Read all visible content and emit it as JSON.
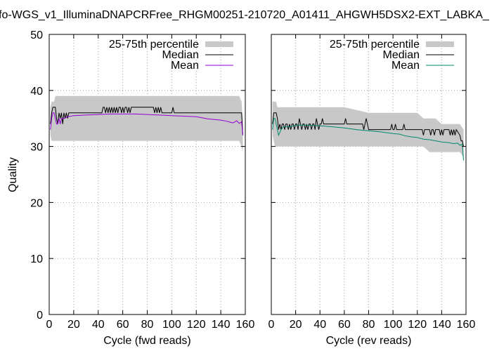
{
  "title": "fo-WGS_v1_IlluminaDNAPCRFree_RHGM00251-210720_A01411_AHGWH5DSX2-EXT_LABKA_",
  "chart_data": [
    {
      "type": "line",
      "xlabel": "Cycle (fwd reads)",
      "ylabel": "Quality",
      "xlim": [
        0,
        160
      ],
      "ylim": [
        0,
        50
      ],
      "xticks": [
        0,
        20,
        40,
        60,
        80,
        100,
        120,
        140,
        160
      ],
      "yticks": [
        0,
        10,
        20,
        30,
        40,
        50
      ],
      "grid": true,
      "legend_position": "top-right",
      "legend": [
        "25-75th percentile",
        "Median",
        "Mean"
      ],
      "colors": {
        "band": "#c8c8c8",
        "median": "#000000",
        "mean": "#9400d3"
      },
      "band_x": [
        1,
        2,
        3,
        4,
        5,
        6,
        7,
        8,
        9,
        10,
        12,
        15,
        20,
        30,
        40,
        50,
        60,
        70,
        80,
        90,
        100,
        110,
        120,
        130,
        140,
        145,
        150,
        155,
        157,
        158
      ],
      "band_low": [
        32,
        31,
        31,
        31,
        31,
        31,
        31,
        31,
        31,
        31,
        31,
        31,
        31,
        31,
        31,
        31,
        31,
        31,
        31,
        31,
        31,
        31,
        31,
        31,
        31,
        31,
        31,
        31,
        30,
        29
      ],
      "band_high": [
        37,
        38,
        38,
        38,
        39,
        39,
        39,
        39,
        39,
        39,
        39,
        39,
        39,
        39,
        39,
        39,
        39,
        39,
        39,
        39,
        39,
        39,
        39,
        39,
        39,
        39,
        39,
        39,
        38,
        34
      ],
      "median_x": [
        1,
        2,
        3,
        4,
        5,
        6,
        7,
        8,
        9,
        10,
        11,
        12,
        13,
        14,
        15,
        16,
        17,
        43,
        44,
        45,
        46,
        47,
        48,
        49,
        50,
        51,
        52,
        53,
        54,
        55,
        56,
        57,
        58,
        59,
        60,
        61,
        62,
        63,
        64,
        65,
        66,
        67,
        68,
        69,
        85,
        86,
        87,
        88,
        89,
        90,
        91,
        92,
        100,
        101,
        102,
        103,
        157,
        158
      ],
      "median_y": [
        34,
        36,
        37,
        37,
        37,
        35,
        34,
        36,
        35,
        36,
        34,
        36,
        35,
        36,
        35,
        36,
        36,
        36,
        37,
        37,
        36,
        37,
        36,
        37,
        36,
        37,
        36,
        37,
        36,
        37,
        36,
        37,
        37,
        36,
        37,
        36,
        37,
        37,
        36,
        37,
        36,
        37,
        37,
        37,
        37,
        36,
        37,
        36,
        37,
        36,
        37,
        36,
        36,
        37,
        36,
        36,
        36,
        32
      ],
      "mean_x": [
        1,
        2,
        3,
        4,
        5,
        6,
        7,
        8,
        9,
        10,
        12,
        15,
        20,
        30,
        40,
        50,
        60,
        70,
        80,
        90,
        100,
        110,
        120,
        125,
        130,
        135,
        140,
        145,
        148,
        150,
        153,
        155,
        157,
        158
      ],
      "mean_y": [
        33,
        35,
        36,
        36,
        35,
        34,
        34,
        35,
        34,
        35,
        35,
        35.3,
        35.5,
        35.6,
        35.7,
        35.8,
        35.8,
        35.8,
        35.7,
        35.6,
        35.5,
        35.4,
        35.3,
        35.1,
        34.9,
        34.8,
        34.7,
        34.5,
        34.3,
        34.2,
        34.6,
        34.1,
        34.4,
        32
      ]
    },
    {
      "type": "line",
      "xlabel": "Cycle (rev reads)",
      "ylabel": "",
      "xlim": [
        0,
        160
      ],
      "ylim": [
        0,
        50
      ],
      "xticks": [
        0,
        20,
        40,
        60,
        80,
        100,
        120,
        140,
        160
      ],
      "yticks": [
        0,
        10,
        20,
        30,
        40,
        50
      ],
      "grid": true,
      "legend_position": "top-right",
      "legend": [
        "25-75th percentile",
        "Median",
        "Mean"
      ],
      "colors": {
        "band": "#c8c8c8",
        "median": "#000000",
        "mean": "#00896b"
      },
      "band_x": [
        1,
        2,
        3,
        4,
        5,
        6,
        8,
        10,
        20,
        40,
        60,
        80,
        100,
        110,
        120,
        125,
        130,
        135,
        140,
        145,
        150,
        155,
        158
      ],
      "band_low": [
        32,
        31,
        30,
        30,
        30,
        30,
        30,
        30,
        30,
        30,
        30,
        30,
        30,
        30,
        30,
        30,
        29,
        29,
        29,
        29,
        29,
        29,
        28
      ],
      "band_high": [
        38,
        38,
        38,
        38,
        37,
        37,
        37,
        37,
        37,
        37,
        37,
        36,
        36,
        36,
        36,
        35,
        35,
        35,
        34,
        34,
        34,
        34,
        33
      ],
      "median_x": [
        1,
        2,
        3,
        4,
        5,
        6,
        7,
        8,
        9,
        10,
        11,
        12,
        13,
        14,
        15,
        16,
        17,
        18,
        19,
        20,
        21,
        22,
        23,
        24,
        25,
        26,
        27,
        28,
        29,
        30,
        31,
        32,
        33,
        34,
        35,
        36,
        37,
        38,
        39,
        40,
        41,
        42,
        43,
        44,
        60,
        61,
        62,
        63,
        75,
        76,
        77,
        78,
        79,
        80,
        98,
        99,
        100,
        101,
        102,
        103,
        104,
        108,
        109,
        110,
        111,
        124,
        125,
        126,
        127,
        130,
        131,
        132,
        133,
        134,
        135,
        138,
        139,
        140,
        141,
        142,
        143,
        146,
        147,
        148,
        149,
        150,
        151,
        152,
        155,
        156,
        157,
        158
      ],
      "median_y": [
        34,
        36,
        36,
        36,
        35,
        33,
        34,
        33,
        34,
        34,
        33,
        34,
        34,
        33,
        34,
        33,
        34,
        34,
        33,
        34,
        34,
        33,
        35,
        34,
        33,
        34,
        34,
        33,
        34,
        33,
        34,
        34,
        33,
        34,
        34,
        33,
        35,
        34,
        33,
        34,
        34,
        35,
        34,
        34,
        34,
        35,
        34,
        34,
        34,
        33,
        34,
        35,
        34,
        33,
        33,
        34,
        33,
        33,
        34,
        33,
        33,
        33,
        34,
        33,
        33,
        33,
        32,
        33,
        33,
        33,
        32,
        33,
        33,
        32,
        33,
        33,
        32,
        33,
        32,
        33,
        33,
        33,
        32,
        33,
        32,
        33,
        32,
        33,
        32,
        31,
        31,
        30
      ],
      "mean_x": [
        1,
        2,
        3,
        4,
        5,
        6,
        8,
        10,
        15,
        20,
        30,
        40,
        50,
        60,
        70,
        80,
        90,
        100,
        105,
        110,
        115,
        120,
        125,
        130,
        135,
        140,
        145,
        150,
        153,
        155,
        157,
        158
      ],
      "mean_y": [
        33,
        35,
        35,
        34,
        33,
        32,
        33,
        33.5,
        33.5,
        33.8,
        33.8,
        33.7,
        33.5,
        33.3,
        33,
        32.8,
        32.6,
        32.3,
        32.2,
        31.9,
        31.7,
        31.6,
        31.3,
        31.2,
        31,
        30.8,
        30.7,
        30.5,
        30.6,
        30.2,
        30.4,
        27.5
      ]
    }
  ]
}
